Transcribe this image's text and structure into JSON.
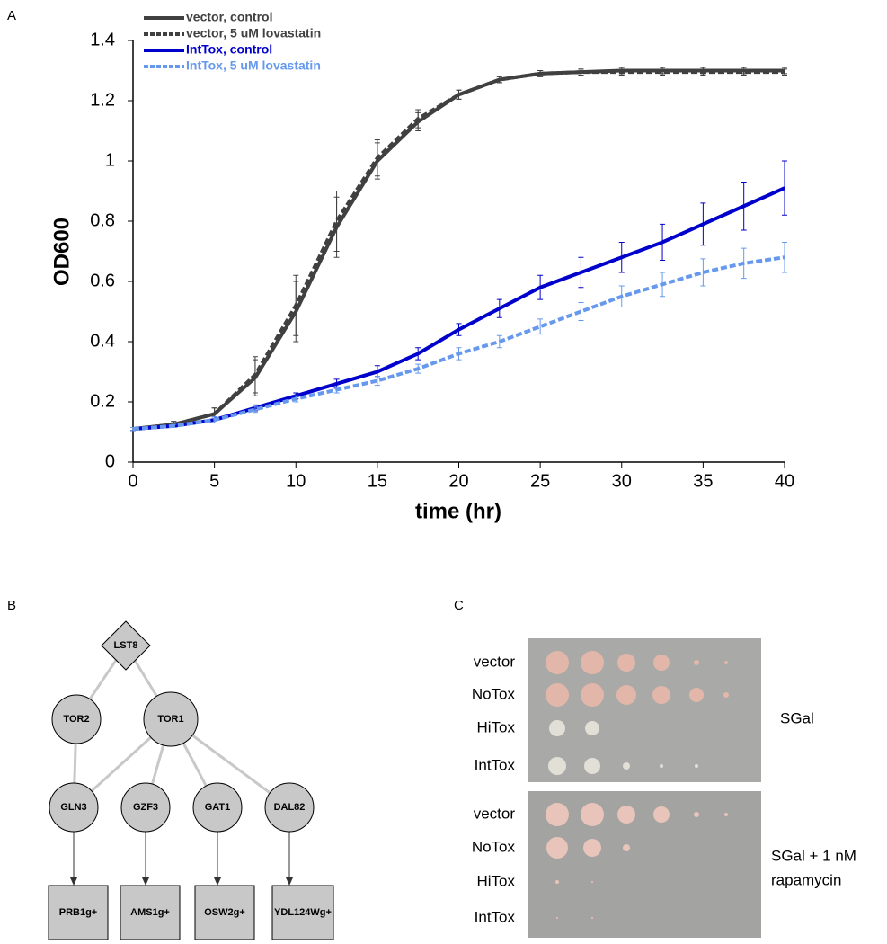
{
  "panel_labels": [
    "A",
    "B",
    "C"
  ],
  "chart_data": {
    "type": "line",
    "xlabel": "time (hr)",
    "ylabel": "OD600",
    "xlim": [
      0,
      40
    ],
    "ylim": [
      0,
      1.4
    ],
    "xticks": [
      0,
      5,
      10,
      15,
      20,
      25,
      30,
      35,
      40
    ],
    "yticks": [
      0,
      0.2,
      0.4,
      0.6,
      0.8,
      1,
      1.2,
      1.4
    ],
    "x": [
      0,
      2.5,
      5,
      7.5,
      10,
      12.5,
      15,
      17.5,
      20,
      22.5,
      25,
      27.5,
      30,
      32.5,
      35,
      37.5,
      40
    ],
    "series": [
      {
        "name": "vector, control",
        "color": "#404040",
        "dashed": false,
        "values": [
          0.11,
          0.125,
          0.16,
          0.28,
          0.5,
          0.78,
          1.0,
          1.13,
          1.22,
          1.27,
          1.29,
          1.295,
          1.3,
          1.3,
          1.3,
          1.3,
          1.3
        ],
        "errors": [
          0.005,
          0.01,
          0.02,
          0.06,
          0.1,
          0.1,
          0.06,
          0.03,
          0.015,
          0.01,
          0.01,
          0.01,
          0.01,
          0.01,
          0.01,
          0.01,
          0.01
        ]
      },
      {
        "name": "vector, 5 uM lovastatin",
        "color": "#404040",
        "dashed": true,
        "values": [
          0.11,
          0.125,
          0.16,
          0.29,
          0.52,
          0.8,
          1.01,
          1.14,
          1.22,
          1.27,
          1.29,
          1.295,
          1.295,
          1.295,
          1.295,
          1.295,
          1.295
        ],
        "errors": [
          0.005,
          0.01,
          0.02,
          0.06,
          0.1,
          0.1,
          0.06,
          0.03,
          0.015,
          0.01,
          0.01,
          0.01,
          0.01,
          0.01,
          0.01,
          0.01,
          0.01
        ]
      },
      {
        "name": "IntTox, control",
        "color": "#0000cc",
        "dashed": false,
        "values": [
          0.11,
          0.12,
          0.14,
          0.18,
          0.22,
          0.26,
          0.3,
          0.36,
          0.44,
          0.51,
          0.58,
          0.63,
          0.68,
          0.73,
          0.79,
          0.85,
          0.91
        ],
        "errors": [
          0.005,
          0.005,
          0.01,
          0.01,
          0.01,
          0.015,
          0.02,
          0.02,
          0.02,
          0.03,
          0.04,
          0.05,
          0.05,
          0.06,
          0.07,
          0.08,
          0.09
        ]
      },
      {
        "name": "IntTox, 5 uM lovastatin",
        "color": "#6699ee",
        "dashed": true,
        "values": [
          0.11,
          0.12,
          0.14,
          0.175,
          0.21,
          0.24,
          0.27,
          0.31,
          0.36,
          0.4,
          0.45,
          0.5,
          0.55,
          0.59,
          0.63,
          0.66,
          0.68
        ],
        "errors": [
          0.005,
          0.005,
          0.01,
          0.01,
          0.01,
          0.01,
          0.015,
          0.015,
          0.02,
          0.02,
          0.025,
          0.03,
          0.035,
          0.04,
          0.045,
          0.05,
          0.05
        ]
      }
    ]
  },
  "diagram": {
    "nodes": [
      {
        "label": "LST8"
      },
      {
        "label": "TOR2"
      },
      {
        "label": "TOR1"
      },
      {
        "label": "GLN3"
      },
      {
        "label": "GZF3"
      },
      {
        "label": "GAT1"
      },
      {
        "label": "DAL82"
      },
      {
        "label": "PRB1g+"
      },
      {
        "label": "AMS1g+"
      },
      {
        "label": "OSW2g+"
      },
      {
        "label": "YDL124Wg+"
      }
    ]
  },
  "plates": {
    "strains_top": [
      "vector",
      "NoTox",
      "HiTox",
      "IntTox"
    ],
    "strains_bottom": [
      "vector",
      "NoTox",
      "HiTox",
      "IntTox"
    ],
    "conditions": [
      [
        "SGal"
      ],
      [
        "SGal + 1 nM",
        "rapamycin"
      ]
    ]
  }
}
